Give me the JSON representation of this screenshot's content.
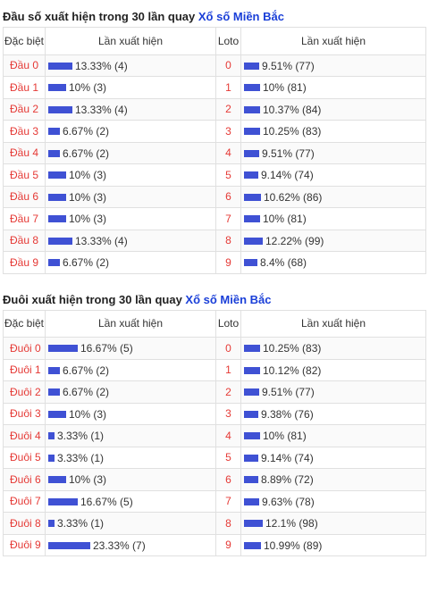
{
  "sections": [
    {
      "title_prefix": "Đầu số xuất hiện trong 30 lần quay ",
      "title_link": "Xổ số Miền Bắc",
      "headers": {
        "col1": "Đặc biệt",
        "col2": "Lần xuất hiện",
        "col3": "Loto",
        "col4": "Lần xuất hiện"
      },
      "rows": [
        {
          "label": "Đầu 0",
          "pct": 13.33,
          "text": "13.33% (4)",
          "loto": "0",
          "loto_pct": 9.51,
          "loto_text": "9.51% (77)"
        },
        {
          "label": "Đầu 1",
          "pct": 10,
          "text": "10% (3)",
          "loto": "1",
          "loto_pct": 10,
          "loto_text": "10% (81)"
        },
        {
          "label": "Đầu 2",
          "pct": 13.33,
          "text": "13.33% (4)",
          "loto": "2",
          "loto_pct": 10.37,
          "loto_text": "10.37% (84)"
        },
        {
          "label": "Đầu 3",
          "pct": 6.67,
          "text": "6.67% (2)",
          "loto": "3",
          "loto_pct": 10.25,
          "loto_text": "10.25% (83)"
        },
        {
          "label": "Đầu 4",
          "pct": 6.67,
          "text": "6.67% (2)",
          "loto": "4",
          "loto_pct": 9.51,
          "loto_text": "9.51% (77)"
        },
        {
          "label": "Đầu 5",
          "pct": 10,
          "text": "10% (3)",
          "loto": "5",
          "loto_pct": 9.14,
          "loto_text": "9.14% (74)"
        },
        {
          "label": "Đầu 6",
          "pct": 10,
          "text": "10% (3)",
          "loto": "6",
          "loto_pct": 10.62,
          "loto_text": "10.62% (86)"
        },
        {
          "label": "Đầu 7",
          "pct": 10,
          "text": "10% (3)",
          "loto": "7",
          "loto_pct": 10,
          "loto_text": "10% (81)"
        },
        {
          "label": "Đầu 8",
          "pct": 13.33,
          "text": "13.33% (4)",
          "loto": "8",
          "loto_pct": 12.22,
          "loto_text": "12.22% (99)"
        },
        {
          "label": "Đầu 9",
          "pct": 6.67,
          "text": "6.67% (2)",
          "loto": "9",
          "loto_pct": 8.4,
          "loto_text": "8.4% (68)"
        }
      ]
    },
    {
      "title_prefix": "Đuôi xuất hiện trong 30 lần quay ",
      "title_link": "Xổ số Miền Bắc",
      "headers": {
        "col1": "Đặc biệt",
        "col2": "Lần xuất hiện",
        "col3": "Loto",
        "col4": "Lần xuất hiện"
      },
      "rows": [
        {
          "label": "Đuôi 0",
          "pct": 16.67,
          "text": "16.67% (5)",
          "loto": "0",
          "loto_pct": 10.25,
          "loto_text": "10.25% (83)"
        },
        {
          "label": "Đuôi 1",
          "pct": 6.67,
          "text": "6.67% (2)",
          "loto": "1",
          "loto_pct": 10.12,
          "loto_text": "10.12% (82)"
        },
        {
          "label": "Đuôi 2",
          "pct": 6.67,
          "text": "6.67% (2)",
          "loto": "2",
          "loto_pct": 9.51,
          "loto_text": "9.51% (77)"
        },
        {
          "label": "Đuôi 3",
          "pct": 10,
          "text": "10% (3)",
          "loto": "3",
          "loto_pct": 9.38,
          "loto_text": "9.38% (76)"
        },
        {
          "label": "Đuôi 4",
          "pct": 3.33,
          "text": "3.33% (1)",
          "loto": "4",
          "loto_pct": 10,
          "loto_text": "10% (81)"
        },
        {
          "label": "Đuôi 5",
          "pct": 3.33,
          "text": "3.33% (1)",
          "loto": "5",
          "loto_pct": 9.14,
          "loto_text": "9.14% (74)"
        },
        {
          "label": "Đuôi 6",
          "pct": 10,
          "text": "10% (3)",
          "loto": "6",
          "loto_pct": 8.89,
          "loto_text": "8.89% (72)"
        },
        {
          "label": "Đuôi 7",
          "pct": 16.67,
          "text": "16.67% (5)",
          "loto": "7",
          "loto_pct": 9.63,
          "loto_text": "9.63% (78)"
        },
        {
          "label": "Đuôi 8",
          "pct": 3.33,
          "text": "3.33% (1)",
          "loto": "8",
          "loto_pct": 12.1,
          "loto_text": "12.1% (98)"
        },
        {
          "label": "Đuôi 9",
          "pct": 23.33,
          "text": "23.33% (7)",
          "loto": "9",
          "loto_pct": 10.99,
          "loto_text": "10.99% (89)"
        }
      ]
    }
  ],
  "colors": {
    "bar": "#3f51d4",
    "label_red": "#e53935",
    "link_blue": "#1a3fd8"
  }
}
